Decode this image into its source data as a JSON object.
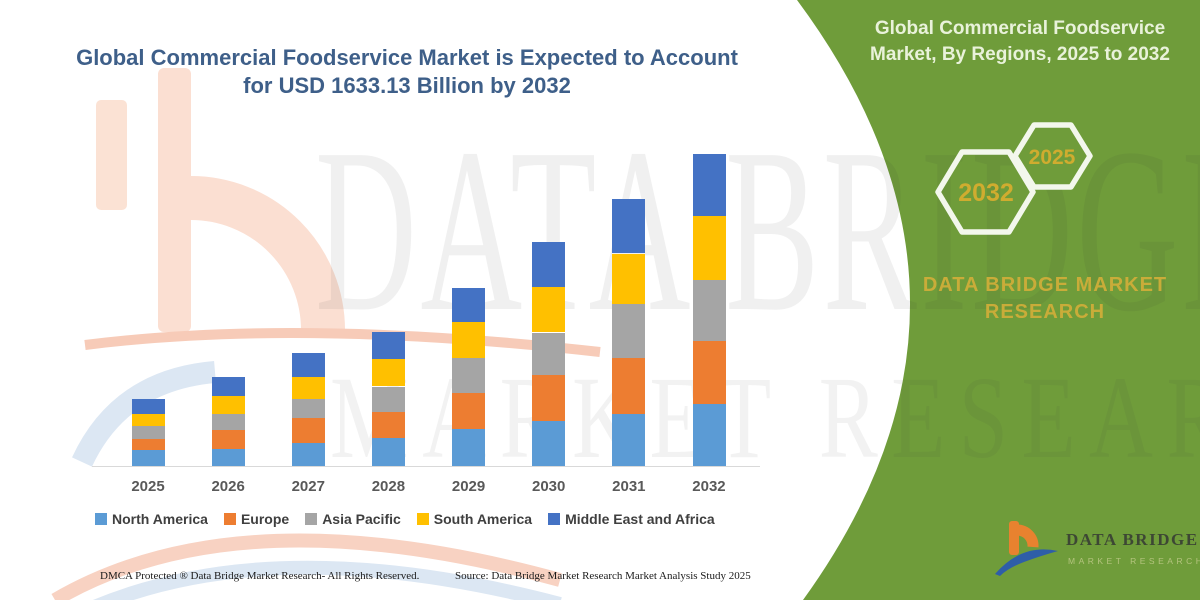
{
  "main_title": {
    "line1": "Global Commercial Foodservice Market is Expected to Account",
    "line2": "for USD 1633.13 Billion by 2032"
  },
  "side_panel": {
    "title_line1": "Global Commercial Foodservice",
    "title_line2": "Market, By Regions, 2025 to 2032",
    "hexagon_back_label": "2032",
    "hexagon_front_label": "2025",
    "brand_caption": "DATA BRIDGE MARKET RESEARCH",
    "logo_title": "DATA BRIDGE",
    "logo_subtitle": "MARKET RESEARCH",
    "panel_color": "#6F9C3A",
    "hexagon_label_color": "#D0AC2F"
  },
  "watermark": {
    "line1": "DATA BRIDGE",
    "line2": "MARKET RESEARCH"
  },
  "footer": {
    "dmca": "DMCA Protected ® Data Bridge Market Research-  All Rights Reserved.",
    "source": "Source: Data Bridge Market Research  Market Analysis Study 2025"
  },
  "chart_data": {
    "type": "bar",
    "stacked": true,
    "title": "Global Commercial Foodservice Market is Expected to Account for USD 1633.13 Billion by 2032",
    "unit": "USD Billion",
    "categories": [
      "2025",
      "2026",
      "2027",
      "2028",
      "2029",
      "2030",
      "2031",
      "2032"
    ],
    "series": [
      {
        "name": "North America",
        "color": "#5B9BD5",
        "values": [
          84,
          87,
          119,
          145,
          192,
          236,
          274,
          323
        ]
      },
      {
        "name": "Europe",
        "color": "#ED7D31",
        "values": [
          59,
          101,
          131,
          140,
          192,
          239,
          290,
          333
        ]
      },
      {
        "name": "Asia Pacific",
        "color": "#A5A5A5",
        "values": [
          66,
          84,
          101,
          131,
          183,
          224,
          283,
          316
        ]
      },
      {
        "name": "South America",
        "color": "#FFC000",
        "values": [
          63,
          94,
          117,
          143,
          187,
          236,
          265,
          336
        ]
      },
      {
        "name": "Middle East and Africa",
        "color": "#4472C4",
        "values": [
          77,
          101,
          122,
          145,
          180,
          239,
          285,
          325.13
        ]
      }
    ],
    "totals_estimated": [
      349,
      467,
      590,
      704,
      934,
      1174,
      1397,
      1633.13
    ],
    "ylim": [
      0,
      1700
    ],
    "gridlines": false,
    "y_axis_visible": false,
    "legend_position": "bottom"
  }
}
